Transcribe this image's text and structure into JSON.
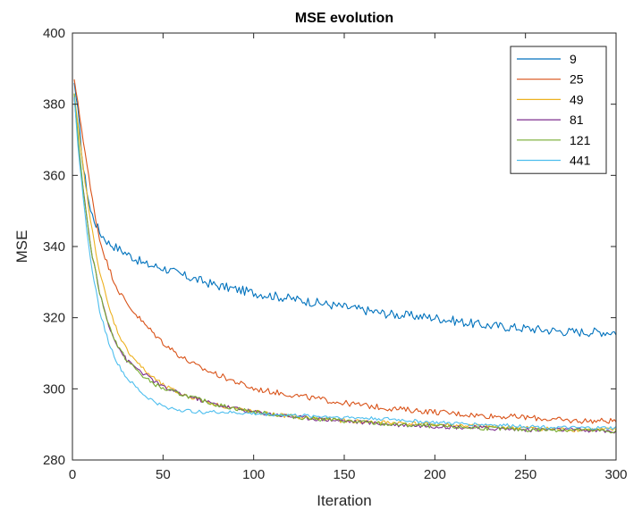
{
  "chart_data": {
    "type": "line",
    "title": "MSE evolution",
    "xlabel": "Iteration",
    "ylabel": "MSE",
    "xlim": [
      0,
      300
    ],
    "ylim": [
      280,
      400
    ],
    "xticks": [
      0,
      50,
      100,
      150,
      200,
      250,
      300
    ],
    "yticks": [
      280,
      300,
      320,
      340,
      360,
      380,
      400
    ],
    "grid": false,
    "legend_position": "top-right",
    "series": [
      {
        "name": "9",
        "color": "#0072BD",
        "noise": 1.3,
        "x": [
          1,
          3,
          6,
          10,
          15,
          20,
          30,
          40,
          50,
          60,
          80,
          100,
          125,
          150,
          175,
          200,
          225,
          250,
          275,
          300
        ],
        "y": [
          386,
          378,
          362,
          350,
          344,
          341,
          338,
          335,
          334,
          332,
          329,
          327,
          325,
          323,
          321,
          320,
          318,
          317,
          316,
          316
        ]
      },
      {
        "name": "25",
        "color": "#D95319",
        "noise": 0.8,
        "x": [
          1,
          3,
          6,
          10,
          15,
          20,
          25,
          30,
          40,
          50,
          60,
          70,
          80,
          90,
          100,
          125,
          150,
          175,
          200,
          225,
          250,
          275,
          300
        ],
        "y": [
          387,
          380,
          370,
          356,
          342,
          334,
          328,
          324,
          318,
          313,
          309,
          306,
          304,
          302,
          300,
          298,
          296,
          294.5,
          293.5,
          292.5,
          292,
          291,
          291
        ]
      },
      {
        "name": "49",
        "color": "#EDB120",
        "noise": 0.6,
        "x": [
          1,
          3,
          6,
          10,
          15,
          20,
          25,
          30,
          40,
          50,
          60,
          70,
          80,
          100,
          125,
          150,
          175,
          200,
          225,
          250,
          275,
          300
        ],
        "y": [
          383,
          374,
          362,
          347,
          333,
          323,
          316,
          311,
          305,
          301,
          298.5,
          297,
          295.5,
          293.5,
          292,
          291,
          290.5,
          290,
          289.5,
          289,
          288.5,
          288.5
        ]
      },
      {
        "name": "81",
        "color": "#7E2F8E",
        "noise": 0.6,
        "x": [
          1,
          3,
          6,
          10,
          15,
          20,
          25,
          30,
          40,
          50,
          60,
          70,
          80,
          100,
          125,
          150,
          175,
          200,
          225,
          250,
          275,
          300
        ],
        "y": [
          382,
          370,
          356,
          340,
          327,
          318,
          312,
          308,
          304,
          300.5,
          298.5,
          297,
          295.5,
          293.5,
          292,
          291,
          290,
          289.5,
          289,
          288.5,
          288.5,
          288
        ]
      },
      {
        "name": "121",
        "color": "#77AC30",
        "noise": 0.6,
        "x": [
          1,
          3,
          6,
          10,
          15,
          20,
          25,
          30,
          40,
          50,
          60,
          70,
          80,
          100,
          125,
          150,
          175,
          200,
          225,
          250,
          275,
          300
        ],
        "y": [
          383,
          371,
          356,
          340,
          327,
          318,
          312,
          308,
          303,
          300,
          298.5,
          297,
          295.5,
          293.5,
          292,
          291,
          290,
          289.5,
          289,
          288.5,
          288.5,
          288
        ]
      },
      {
        "name": "441",
        "color": "#4DBEEE",
        "noise": 0.5,
        "x": [
          1,
          3,
          6,
          10,
          15,
          20,
          25,
          30,
          40,
          50,
          60,
          70,
          80,
          100,
          125,
          150,
          175,
          200,
          225,
          250,
          275,
          300
        ],
        "y": [
          382,
          369,
          353,
          336,
          322,
          313,
          307,
          303,
          298,
          295,
          294,
          293.5,
          293.5,
          293,
          292.5,
          292,
          291.5,
          290.5,
          290,
          289.5,
          289,
          289
        ]
      }
    ]
  }
}
